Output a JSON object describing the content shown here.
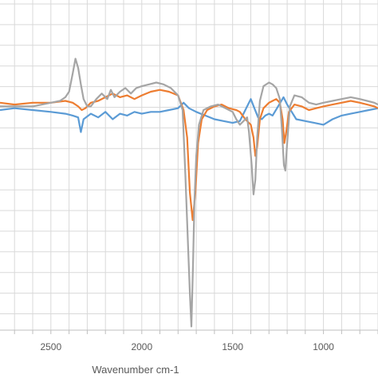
{
  "chart_data": {
    "type": "line",
    "title": "",
    "xlabel": "Wavenumber cm-1",
    "ylabel": "",
    "xlim": [
      2780,
      700
    ],
    "x_reversed": true,
    "xticks": [
      2500,
      2000,
      1500,
      1000
    ],
    "xtick_labels": [
      "2500",
      "2000",
      "1500",
      "1000"
    ],
    "ylim": [
      -1.2,
      0.6
    ],
    "grid": true,
    "legend": "none",
    "series": [
      {
        "color": "#5B9BD5",
        "points": [
          [
            2780,
            0.0
          ],
          [
            2700,
            0.01
          ],
          [
            2600,
            0.0
          ],
          [
            2500,
            -0.01
          ],
          [
            2420,
            -0.02
          ],
          [
            2380,
            -0.03
          ],
          [
            2350,
            -0.04
          ],
          [
            2335,
            -0.12
          ],
          [
            2320,
            -0.05
          ],
          [
            2280,
            -0.02
          ],
          [
            2240,
            -0.04
          ],
          [
            2200,
            -0.01
          ],
          [
            2160,
            -0.05
          ],
          [
            2120,
            -0.02
          ],
          [
            2080,
            -0.03
          ],
          [
            2040,
            -0.01
          ],
          [
            2000,
            -0.02
          ],
          [
            1950,
            -0.01
          ],
          [
            1900,
            -0.01
          ],
          [
            1850,
            0.0
          ],
          [
            1800,
            0.01
          ],
          [
            1770,
            0.04
          ],
          [
            1740,
            0.01
          ],
          [
            1700,
            -0.01
          ],
          [
            1650,
            -0.03
          ],
          [
            1600,
            -0.05
          ],
          [
            1550,
            -0.06
          ],
          [
            1500,
            -0.07
          ],
          [
            1460,
            -0.06
          ],
          [
            1420,
            0.02
          ],
          [
            1400,
            0.06
          ],
          [
            1380,
            0.01
          ],
          [
            1360,
            -0.04
          ],
          [
            1340,
            -0.05
          ],
          [
            1320,
            -0.03
          ],
          [
            1300,
            -0.02
          ],
          [
            1280,
            -0.03
          ],
          [
            1250,
            0.02
          ],
          [
            1220,
            0.07
          ],
          [
            1200,
            0.03
          ],
          [
            1150,
            -0.05
          ],
          [
            1100,
            -0.06
          ],
          [
            1050,
            -0.07
          ],
          [
            1000,
            -0.08
          ],
          [
            950,
            -0.05
          ],
          [
            900,
            -0.03
          ],
          [
            850,
            -0.02
          ],
          [
            800,
            -0.01
          ],
          [
            750,
            0.0
          ],
          [
            700,
            0.01
          ]
        ]
      },
      {
        "color": "#ED7D31",
        "points": [
          [
            2780,
            0.04
          ],
          [
            2700,
            0.03
          ],
          [
            2600,
            0.04
          ],
          [
            2500,
            0.04
          ],
          [
            2420,
            0.05
          ],
          [
            2380,
            0.04
          ],
          [
            2350,
            0.02
          ],
          [
            2330,
            0.0
          ],
          [
            2310,
            0.01
          ],
          [
            2280,
            0.04
          ],
          [
            2240,
            0.05
          ],
          [
            2200,
            0.07
          ],
          [
            2160,
            0.09
          ],
          [
            2120,
            0.07
          ],
          [
            2080,
            0.08
          ],
          [
            2040,
            0.06
          ],
          [
            2000,
            0.08
          ],
          [
            1950,
            0.1
          ],
          [
            1900,
            0.11
          ],
          [
            1850,
            0.1
          ],
          [
            1800,
            0.08
          ],
          [
            1770,
            0.0
          ],
          [
            1750,
            -0.15
          ],
          [
            1735,
            -0.45
          ],
          [
            1720,
            -0.6
          ],
          [
            1705,
            -0.45
          ],
          [
            1690,
            -0.18
          ],
          [
            1670,
            -0.05
          ],
          [
            1640,
            0.0
          ],
          [
            1600,
            0.02
          ],
          [
            1560,
            0.03
          ],
          [
            1520,
            0.01
          ],
          [
            1480,
            0.0
          ],
          [
            1460,
            -0.01
          ],
          [
            1430,
            -0.05
          ],
          [
            1400,
            -0.08
          ],
          [
            1385,
            -0.15
          ],
          [
            1375,
            -0.25
          ],
          [
            1365,
            -0.2
          ],
          [
            1350,
            -0.05
          ],
          [
            1330,
            0.01
          ],
          [
            1300,
            0.04
          ],
          [
            1280,
            0.05
          ],
          [
            1260,
            0.06
          ],
          [
            1240,
            0.04
          ],
          [
            1225,
            -0.05
          ],
          [
            1215,
            -0.18
          ],
          [
            1205,
            -0.12
          ],
          [
            1190,
            -0.01
          ],
          [
            1160,
            0.03
          ],
          [
            1120,
            0.02
          ],
          [
            1080,
            0.0
          ],
          [
            1040,
            0.01
          ],
          [
            1000,
            0.02
          ],
          [
            950,
            0.03
          ],
          [
            900,
            0.04
          ],
          [
            850,
            0.05
          ],
          [
            800,
            0.04
          ],
          [
            760,
            0.03
          ],
          [
            720,
            0.02
          ],
          [
            700,
            0.01
          ]
        ]
      },
      {
        "color": "#A5A5A5",
        "points": [
          [
            2780,
            0.02
          ],
          [
            2700,
            0.02
          ],
          [
            2600,
            0.02
          ],
          [
            2500,
            0.04
          ],
          [
            2450,
            0.05
          ],
          [
            2420,
            0.07
          ],
          [
            2400,
            0.1
          ],
          [
            2380,
            0.2
          ],
          [
            2365,
            0.28
          ],
          [
            2350,
            0.23
          ],
          [
            2335,
            0.14
          ],
          [
            2320,
            0.06
          ],
          [
            2300,
            0.02
          ],
          [
            2280,
            0.02
          ],
          [
            2250,
            0.06
          ],
          [
            2220,
            0.09
          ],
          [
            2190,
            0.06
          ],
          [
            2170,
            0.11
          ],
          [
            2150,
            0.07
          ],
          [
            2120,
            0.1
          ],
          [
            2090,
            0.12
          ],
          [
            2060,
            0.09
          ],
          [
            2030,
            0.12
          ],
          [
            2000,
            0.13
          ],
          [
            1960,
            0.14
          ],
          [
            1920,
            0.15
          ],
          [
            1880,
            0.14
          ],
          [
            1840,
            0.12
          ],
          [
            1800,
            0.08
          ],
          [
            1775,
            0.0
          ],
          [
            1760,
            -0.35
          ],
          [
            1745,
            -0.75
          ],
          [
            1735,
            -1.0
          ],
          [
            1727,
            -1.18
          ],
          [
            1718,
            -0.85
          ],
          [
            1710,
            -0.5
          ],
          [
            1700,
            -0.25
          ],
          [
            1685,
            -0.08
          ],
          [
            1660,
            0.0
          ],
          [
            1620,
            0.02
          ],
          [
            1580,
            0.03
          ],
          [
            1540,
            0.01
          ],
          [
            1500,
            -0.01
          ],
          [
            1480,
            -0.05
          ],
          [
            1460,
            -0.08
          ],
          [
            1440,
            -0.06
          ],
          [
            1420,
            -0.04
          ],
          [
            1410,
            -0.12
          ],
          [
            1395,
            -0.3
          ],
          [
            1385,
            -0.46
          ],
          [
            1375,
            -0.38
          ],
          [
            1365,
            -0.15
          ],
          [
            1350,
            0.05
          ],
          [
            1330,
            0.13
          ],
          [
            1300,
            0.15
          ],
          [
            1280,
            0.14
          ],
          [
            1260,
            0.12
          ],
          [
            1240,
            0.06
          ],
          [
            1228,
            -0.12
          ],
          [
            1218,
            -0.3
          ],
          [
            1210,
            -0.33
          ],
          [
            1200,
            -0.18
          ],
          [
            1185,
            0.02
          ],
          [
            1160,
            0.08
          ],
          [
            1120,
            0.07
          ],
          [
            1080,
            0.04
          ],
          [
            1040,
            0.03
          ],
          [
            1000,
            0.04
          ],
          [
            950,
            0.05
          ],
          [
            900,
            0.06
          ],
          [
            850,
            0.07
          ],
          [
            800,
            0.06
          ],
          [
            760,
            0.05
          ],
          [
            720,
            0.04
          ],
          [
            700,
            0.03
          ]
        ]
      }
    ]
  }
}
